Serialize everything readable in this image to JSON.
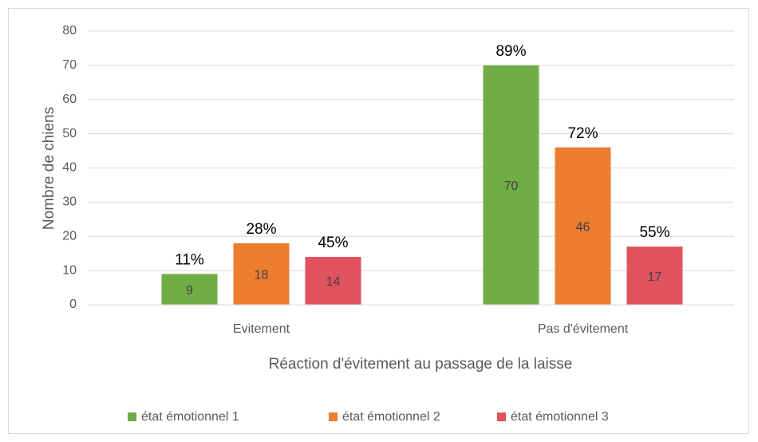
{
  "chart_data": {
    "type": "bar",
    "x_label": "Réaction d'évitement au passage de la laisse",
    "y_label": "Nombre de chiens",
    "categories": [
      "Evitement",
      "Pas d'évitement"
    ],
    "series": [
      {
        "name": "état émotionnel 1",
        "color": "#70ad47",
        "values": [
          9,
          70
        ],
        "percent_labels": [
          "11%",
          "89%"
        ]
      },
      {
        "name": "état émotionnel 2",
        "color": "#ed7d31",
        "values": [
          18,
          46
        ],
        "percent_labels": [
          "28%",
          "72%"
        ]
      },
      {
        "name": "état émotionnel 3",
        "color": "#e0525e",
        "values": [
          14,
          17
        ],
        "percent_labels": [
          "45%",
          "55%"
        ]
      }
    ],
    "ylim": [
      0,
      80
    ],
    "yticks": [
      0,
      10,
      20,
      30,
      40,
      50,
      60,
      70,
      80
    ],
    "grid": true,
    "legend": "bottom"
  }
}
